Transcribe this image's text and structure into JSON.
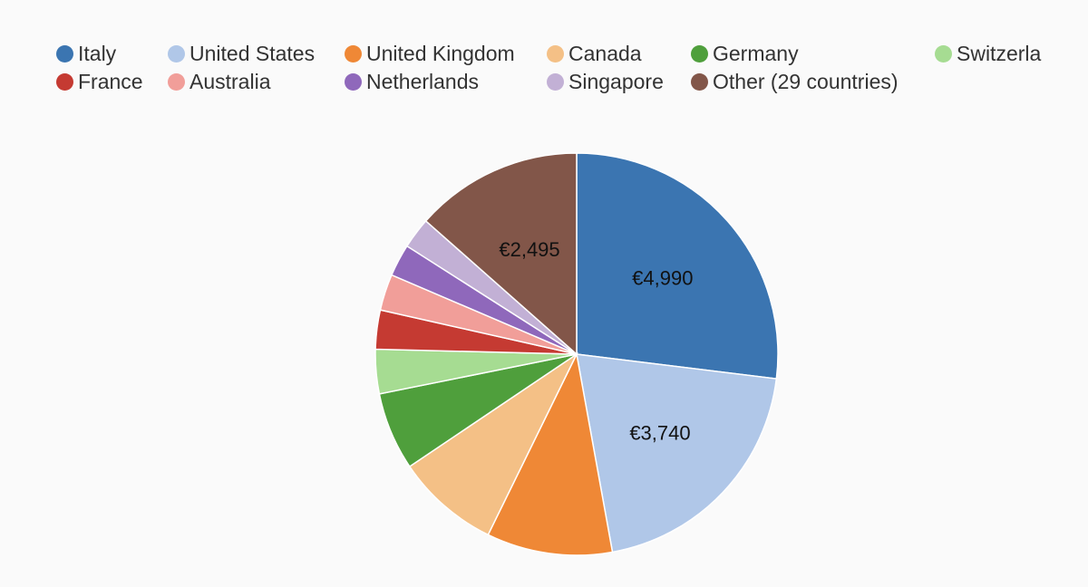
{
  "chart_data": {
    "type": "pie",
    "title": "",
    "currency": "€",
    "start_angle_deg": 0,
    "direction": "clockwise",
    "legend_position": "top",
    "slices": [
      {
        "name": "Italy",
        "value": 4990,
        "color": "#3b75b1",
        "label": "€4,990"
      },
      {
        "name": "United States",
        "value": 3740,
        "color": "#b0c7e8",
        "label": "€3,740"
      },
      {
        "name": "United Kingdom",
        "value": 1870,
        "color": "#ef8836",
        "label": ""
      },
      {
        "name": "Canada",
        "value": 1540,
        "color": "#f4c086",
        "label": ""
      },
      {
        "name": "Germany",
        "value": 1160,
        "color": "#4f9f3c",
        "label": ""
      },
      {
        "name": "Switzerla",
        "value": 660,
        "color": "#a6dc92",
        "label": ""
      },
      {
        "name": "France",
        "value": 580,
        "color": "#c53a32",
        "label": ""
      },
      {
        "name": "Australia",
        "value": 540,
        "color": "#f19e99",
        "label": ""
      },
      {
        "name": "Netherlands",
        "value": 480,
        "color": "#8f68bb",
        "label": ""
      },
      {
        "name": "Singapore",
        "value": 460,
        "color": "#c2b0d5",
        "label": ""
      },
      {
        "name": "Other (29 countries)",
        "value": 2495,
        "color": "#825649",
        "label": "€2,495"
      }
    ]
  }
}
